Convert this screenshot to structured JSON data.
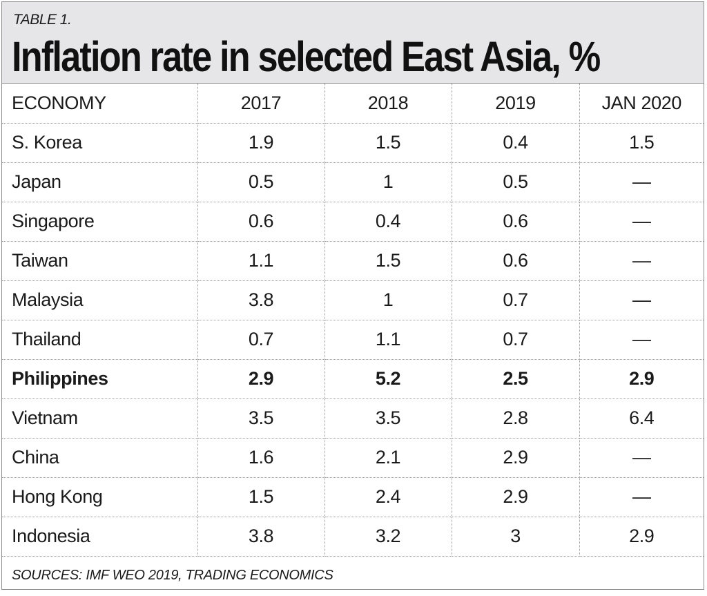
{
  "table_label": "TABLE 1.",
  "title": "Inflation rate in selected East Asia, %",
  "columns": [
    "ECONOMY",
    "2017",
    "2018",
    "2019",
    "JAN 2020"
  ],
  "rows": [
    {
      "economy": "S. Korea",
      "v2017": "1.9",
      "v2018": "1.5",
      "v2019": "0.4",
      "jan2020": "1.5"
    },
    {
      "economy": "Japan",
      "v2017": "0.5",
      "v2018": "1",
      "v2019": "0.5",
      "jan2020": "—"
    },
    {
      "economy": "Singapore",
      "v2017": "0.6",
      "v2018": "0.4",
      "v2019": "0.6",
      "jan2020": "—"
    },
    {
      "economy": "Taiwan",
      "v2017": "1.1",
      "v2018": "1.5",
      "v2019": "0.6",
      "jan2020": "—"
    },
    {
      "economy": "Malaysia",
      "v2017": "3.8",
      "v2018": "1",
      "v2019": "0.7",
      "jan2020": "—"
    },
    {
      "economy": "Thailand",
      "v2017": "0.7",
      "v2018": "1.1",
      "v2019": "0.7",
      "jan2020": "—"
    },
    {
      "economy": "Philippines",
      "v2017": "2.9",
      "v2018": "5.2",
      "v2019": "2.5",
      "jan2020": "2.9"
    },
    {
      "economy": "Vietnam",
      "v2017": "3.5",
      "v2018": "3.5",
      "v2019": "2.8",
      "jan2020": "6.4"
    },
    {
      "economy": "China",
      "v2017": "1.6",
      "v2018": "2.1",
      "v2019": "2.9",
      "jan2020": "—"
    },
    {
      "economy": "Hong Kong",
      "v2017": "1.5",
      "v2018": "2.4",
      "v2019": "2.9",
      "jan2020": "—"
    },
    {
      "economy": "Indonesia",
      "v2017": "3.8",
      "v2018": "3.2",
      "v2019": "3",
      "jan2020": "2.9"
    }
  ],
  "highlighted_economy": "Philippines",
  "sources": "SOURCES: IMF WEO 2019, TRADING ECONOMICS",
  "colors": {
    "header_background": "#e6e6e8",
    "border": "#8a8a8a",
    "text": "#1a1a1a"
  }
}
